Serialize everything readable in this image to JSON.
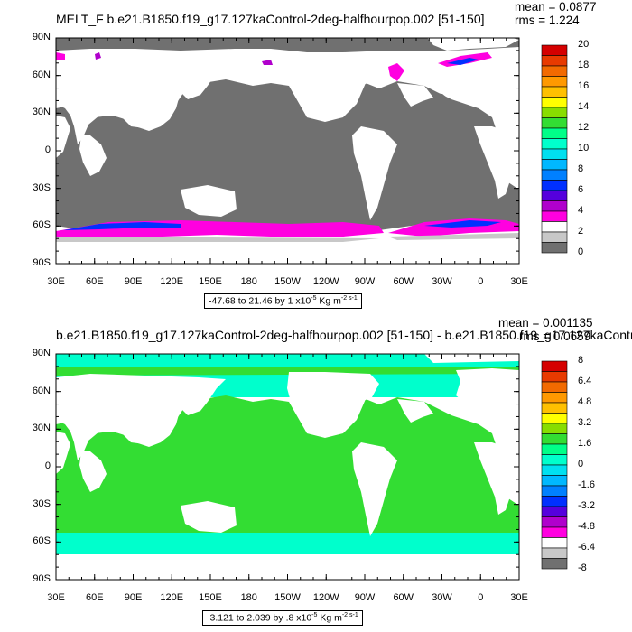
{
  "panels": [
    {
      "title": "MELT_F b.e21.B1850.f19_g17.127kaControl-2deg-halfhourpop.002 [51-150]",
      "mean_text": "mean = 0.0877",
      "rms_text": "rms = 1.224",
      "lat_labels": [
        "90N",
        "60N",
        "30N",
        "0",
        "30S",
        "60S",
        "90S"
      ],
      "lon_labels": [
        "30E",
        "60E",
        "90E",
        "120E",
        "150E",
        "180",
        "150W",
        "120W",
        "90W",
        "60W",
        "30W",
        "0",
        "30E"
      ],
      "range_prefix": "-47.68 to 21.46 by 1 x10",
      "range_exp": "-5",
      "range_units": " Kg m",
      "range_units_exp": "-2 s-1",
      "colorbar_labels": [
        "20",
        "18",
        "16",
        "14",
        "12",
        "10",
        "8",
        "6",
        "4",
        "2",
        "0"
      ],
      "colorbar_colors": [
        "#d50000",
        "#e83a00",
        "#f26a00",
        "#ff9900",
        "#ffc000",
        "#ffff00",
        "#88dd00",
        "#33dd33",
        "#00ff88",
        "#00ffcc",
        "#00e0f0",
        "#00b8ff",
        "#0080ff",
        "#0030ff",
        "#5500dd",
        "#b000cc",
        "#ff00e0",
        "#ffffff",
        "#c8c8c8",
        "#707070"
      ]
    },
    {
      "title": "b.e21.B1850.f19_g17.127kaControl-2deg-halfhourpop.002 [51-150] - b.e21.B1850.f19_g17.127kaControl",
      "mean_text": "mean = 0.001135",
      "rms_text": "rms = 0.0659",
      "lat_labels": [
        "90N",
        "60N",
        "30N",
        "0",
        "30S",
        "60S",
        "90S"
      ],
      "lon_labels": [
        "30E",
        "60E",
        "90E",
        "120E",
        "150E",
        "180",
        "150W",
        "120W",
        "90W",
        "60W",
        "30W",
        "0",
        "30E"
      ],
      "range_prefix": "-3.121 to 2.039 by .8 x10",
      "range_exp": "-5",
      "range_units": " Kg m",
      "range_units_exp": "-2 s-1",
      "colorbar_labels": [
        "8",
        "6.4",
        "4.8",
        "3.2",
        "1.6",
        "0",
        "-1.6",
        "-3.2",
        "-4.8",
        "-6.4",
        "-8"
      ],
      "colorbar_colors": [
        "#d50000",
        "#e83a00",
        "#f26a00",
        "#ff9900",
        "#ffc000",
        "#ffff00",
        "#88dd00",
        "#33dd33",
        "#00ff88",
        "#00ffcc",
        "#00e0f0",
        "#00b8ff",
        "#0080ff",
        "#0030ff",
        "#5500dd",
        "#b000cc",
        "#ff00e0",
        "#ffffff",
        "#c8c8c8",
        "#707070"
      ]
    }
  ]
}
